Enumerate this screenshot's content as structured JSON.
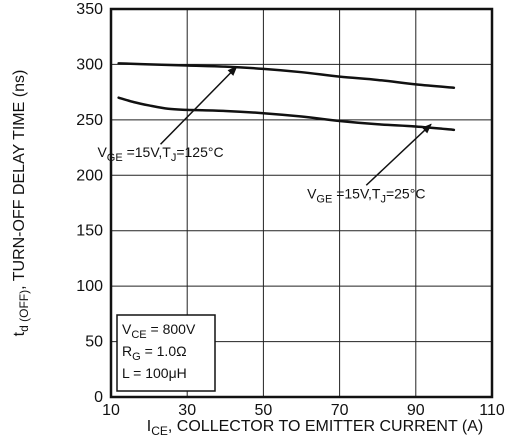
{
  "chart_data": {
    "type": "line",
    "xlabel": {
      "main": "I",
      "sub": "CE",
      "rest": ", COLLECTOR  TO  EMITTER  CURRENT (A)"
    },
    "ylabel": {
      "main": "t",
      "sub": "d (OFF)",
      "rest": ", TURN-OFF DELAY TIME (ns)"
    },
    "xlim": [
      10,
      110
    ],
    "ylim": [
      0,
      350
    ],
    "xticks": [
      10,
      30,
      50,
      70,
      90,
      110
    ],
    "yticks": [
      0,
      50,
      100,
      150,
      200,
      250,
      300,
      350
    ],
    "grid": true,
    "series": [
      {
        "id": "tj125",
        "x": [
          12,
          20,
          30,
          40,
          50,
          60,
          70,
          80,
          90,
          100
        ],
        "y": [
          301,
          300,
          299,
          298,
          296,
          293,
          289,
          286,
          282,
          279
        ]
      },
      {
        "id": "tj25",
        "x": [
          12,
          16,
          20,
          25,
          30,
          40,
          50,
          60,
          70,
          80,
          90,
          100
        ],
        "y": [
          270,
          266,
          263,
          260,
          259,
          258,
          256,
          253,
          249,
          246,
          244,
          241
        ]
      }
    ],
    "annotations": [
      {
        "series": "tj125",
        "parts": [
          [
            "V",
            ""
          ],
          [
            "GE",
            "sub"
          ],
          [
            " =15V,T",
            ""
          ],
          [
            "J",
            "sub"
          ],
          [
            "=125°C",
            ""
          ]
        ],
        "arrow_from": [
          23,
          228
        ],
        "arrow_to": [
          43,
          298
        ]
      },
      {
        "series": "tj25",
        "parts": [
          [
            "V",
            ""
          ],
          [
            "GE",
            "sub"
          ],
          [
            " =15V,T",
            ""
          ],
          [
            "J",
            "sub"
          ],
          [
            "=25°C",
            ""
          ]
        ],
        "arrow_from": [
          77,
          191
        ],
        "arrow_to": [
          94,
          246
        ]
      }
    ],
    "info_box": [
      [
        [
          "V",
          ""
        ],
        [
          "CE",
          "sub"
        ],
        [
          " = 800V",
          ""
        ]
      ],
      [
        [
          "R",
          ""
        ],
        [
          "G",
          "sub"
        ],
        [
          " = 1.0Ω",
          ""
        ]
      ],
      [
        [
          "L = 100μH",
          ""
        ]
      ]
    ]
  }
}
